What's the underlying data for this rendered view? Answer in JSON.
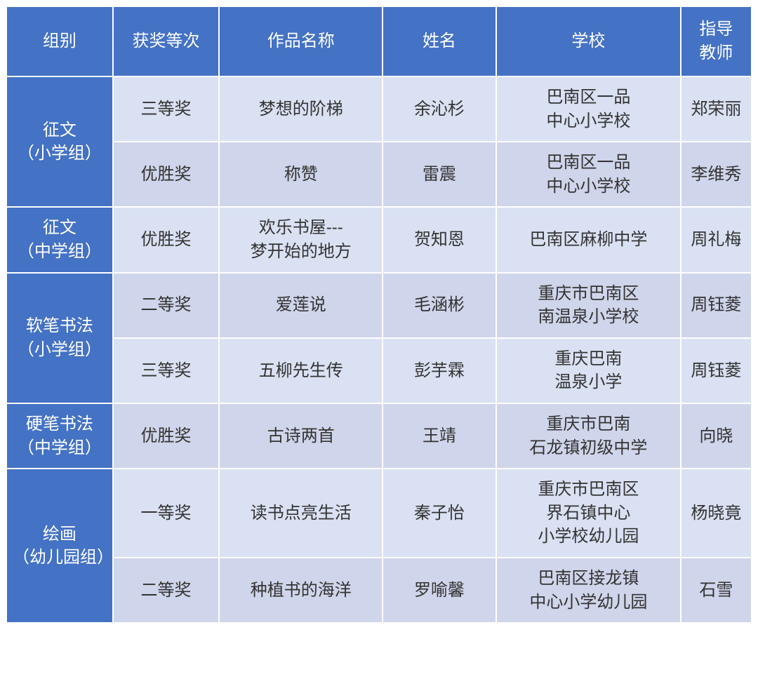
{
  "table": {
    "type": "table",
    "headers": {
      "group": "组别",
      "award": "获奖等次",
      "work": "作品名称",
      "name": "姓名",
      "school": "学校",
      "teacher": "指导\n教师"
    },
    "colors": {
      "header_bg": "#4472c4",
      "header_text": "#ffffff",
      "group_bg": "#4472c4",
      "group_text": "#ffffff",
      "row_odd_bg": "#d9e1f2",
      "row_even_bg": "#cfd5ea",
      "cell_text": "#333333",
      "border": "#ffffff"
    },
    "font_size": 24,
    "groups": [
      {
        "label": "征文\n（小学组）",
        "rows": [
          {
            "award": "三等奖",
            "work": "梦想的阶梯",
            "name": "余沁杉",
            "school": "巴南区一品\n中心小学校",
            "teacher": "郑荣丽",
            "shade": "odd"
          },
          {
            "award": "优胜奖",
            "work": "称赞",
            "name": "雷震",
            "school": "巴南区一品\n中心小学校",
            "teacher": "李维秀",
            "shade": "even"
          }
        ]
      },
      {
        "label": "征文\n（中学组）",
        "rows": [
          {
            "award": "优胜奖",
            "work": "欢乐书屋---\n梦开始的地方",
            "name": "贺知恩",
            "school": "巴南区麻柳中学",
            "teacher": "周礼梅",
            "shade": "odd"
          }
        ]
      },
      {
        "label": "软笔书法\n（小学组）",
        "rows": [
          {
            "award": "二等奖",
            "work": "爱莲说",
            "name": "毛涵彬",
            "school": "重庆市巴南区\n南温泉小学校",
            "teacher": "周钰菱",
            "shade": "even"
          },
          {
            "award": "三等奖",
            "work": "五柳先生传",
            "name": "彭芋霖",
            "school": "重庆巴南\n温泉小学",
            "teacher": "周钰菱",
            "shade": "odd"
          }
        ]
      },
      {
        "label": "硬笔书法\n（中学组）",
        "rows": [
          {
            "award": "优胜奖",
            "work": "古诗两首",
            "name": "王靖",
            "school": "重庆市巴南\n石龙镇初级中学",
            "teacher": "向晓",
            "shade": "even"
          }
        ]
      },
      {
        "label": "绘画\n（幼儿园组）",
        "rows": [
          {
            "award": "一等奖",
            "work": "读书点亮生活",
            "name": "秦子怡",
            "school": "重庆市巴南区\n界石镇中心\n小学校幼儿园",
            "teacher": "杨晓竟",
            "shade": "odd"
          },
          {
            "award": "二等奖",
            "work": "种植书的海洋",
            "name": "罗喻馨",
            "school": "巴南区接龙镇\n中心小学幼儿园",
            "teacher": "石雪",
            "shade": "even"
          }
        ]
      }
    ]
  }
}
